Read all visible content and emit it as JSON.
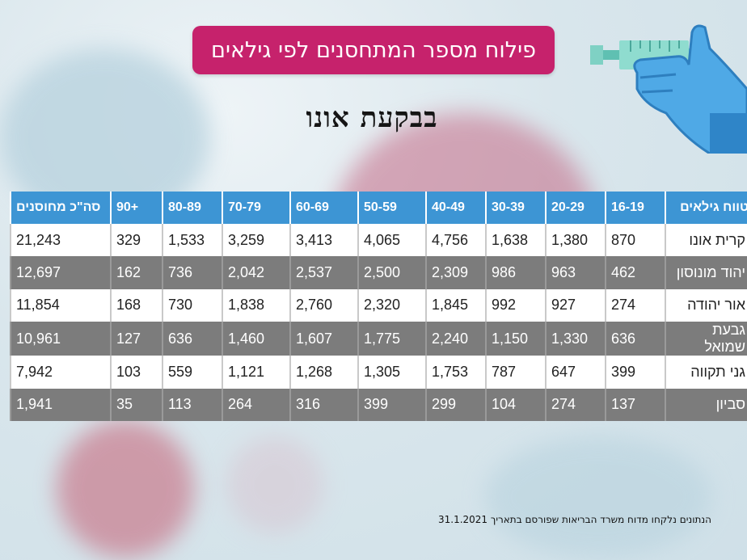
{
  "title": "פילוח מספר המתחסנים לפי גילאים",
  "subtitle": "בבקעת אונו",
  "footnote": "הנתונים נלקחו מדוח משרד הבריאות שפורסם בתאריך 31.1.2021",
  "colors": {
    "header": "#3d95d4",
    "title_bg": "#c6226c",
    "row_alt": "#7c7c7c"
  },
  "chart_data": {
    "type": "table",
    "columns": [
      "טווח גילאים",
      "16-19",
      "20-29",
      "30-39",
      "40-49",
      "50-59",
      "60-69",
      "70-79",
      "80-89",
      "90+",
      "סה\"כ מחוסנים"
    ],
    "rows": [
      {
        "name": "קרית אונו",
        "values": [
          "870",
          "1,380",
          "1,638",
          "4,756",
          "4,065",
          "3,413",
          "3,259",
          "1,533",
          "329",
          "21,243"
        ]
      },
      {
        "name": "יהוד מונוסון",
        "values": [
          "462",
          "963",
          "986",
          "2,309",
          "2,500",
          "2,537",
          "2,042",
          "736",
          "162",
          "12,697"
        ]
      },
      {
        "name": "אור יהודה",
        "values": [
          "274",
          "927",
          "992",
          "1,845",
          "2,320",
          "2,760",
          "1,838",
          "730",
          "168",
          "11,854"
        ]
      },
      {
        "name": "גבעת שמואל",
        "values": [
          "636",
          "1,330",
          "1,150",
          "2,240",
          "1,775",
          "1,607",
          "1,460",
          "636",
          "127",
          "10,961"
        ]
      },
      {
        "name": "גני תקווה",
        "values": [
          "399",
          "647",
          "787",
          "1,753",
          "1,305",
          "1,268",
          "1,121",
          "559",
          "103",
          "7,942"
        ]
      },
      {
        "name": "סביון",
        "values": [
          "137",
          "274",
          "104",
          "299",
          "399",
          "316",
          "264",
          "113",
          "35",
          "1,941"
        ]
      }
    ]
  }
}
